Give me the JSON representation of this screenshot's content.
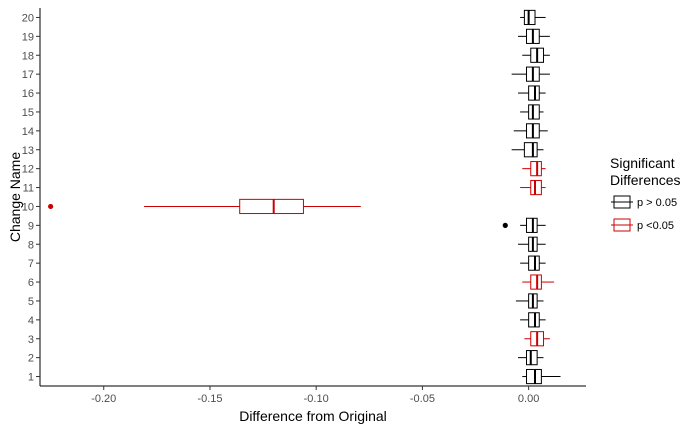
{
  "chart_data": {
    "type": "boxplot",
    "orientation": "horizontal",
    "xlabel": "Difference from Original",
    "ylabel": "Change Name",
    "xlim": [
      -0.23,
      0.027
    ],
    "xticks": [
      -0.2,
      -0.15,
      -0.1,
      -0.05,
      0.0
    ],
    "xtick_labels": [
      "-0.20",
      "-0.15",
      "-0.10",
      "-0.05",
      "0.00"
    ],
    "grid": false,
    "legend": {
      "title_lines": [
        "Significant",
        "Differences"
      ],
      "placement": "right",
      "entries": [
        {
          "label": "p > 0.05",
          "color": "#000000"
        },
        {
          "label": "p <0.05",
          "color": "#cc0000"
        }
      ]
    },
    "categories": [
      "1",
      "2",
      "3",
      "4",
      "5",
      "6",
      "7",
      "8",
      "9",
      "10",
      "11",
      "12",
      "13",
      "14",
      "15",
      "16",
      "17",
      "18",
      "19",
      "20"
    ],
    "boxes": [
      {
        "category": "1",
        "significant": false,
        "whisker_low": -0.003,
        "q1": -0.001,
        "median": 0.003,
        "q3": 0.006,
        "whisker_high": 0.015,
        "outliers": []
      },
      {
        "category": "2",
        "significant": false,
        "whisker_low": -0.005,
        "q1": -0.001,
        "median": 0.001,
        "q3": 0.004,
        "whisker_high": 0.007,
        "outliers": []
      },
      {
        "category": "3",
        "significant": true,
        "whisker_low": -0.002,
        "q1": 0.001,
        "median": 0.004,
        "q3": 0.007,
        "whisker_high": 0.01,
        "outliers": []
      },
      {
        "category": "4",
        "significant": false,
        "whisker_low": -0.004,
        "q1": 0.0,
        "median": 0.003,
        "q3": 0.005,
        "whisker_high": 0.008,
        "outliers": []
      },
      {
        "category": "5",
        "significant": false,
        "whisker_low": -0.006,
        "q1": 0.0,
        "median": 0.002,
        "q3": 0.004,
        "whisker_high": 0.007,
        "outliers": []
      },
      {
        "category": "6",
        "significant": true,
        "whisker_low": -0.003,
        "q1": 0.001,
        "median": 0.004,
        "q3": 0.006,
        "whisker_high": 0.012,
        "outliers": []
      },
      {
        "category": "7",
        "significant": false,
        "whisker_low": -0.004,
        "q1": 0.0,
        "median": 0.003,
        "q3": 0.005,
        "whisker_high": 0.008,
        "outliers": []
      },
      {
        "category": "8",
        "significant": false,
        "whisker_low": -0.005,
        "q1": 0.0,
        "median": 0.002,
        "q3": 0.004,
        "whisker_high": 0.008,
        "outliers": []
      },
      {
        "category": "9",
        "significant": false,
        "whisker_low": -0.004,
        "q1": -0.001,
        "median": 0.002,
        "q3": 0.004,
        "whisker_high": 0.008,
        "outliers": [
          -0.011
        ]
      },
      {
        "category": "10",
        "significant": true,
        "whisker_low": -0.181,
        "q1": -0.136,
        "median": -0.12,
        "q3": -0.106,
        "whisker_high": -0.079,
        "outliers": [
          -0.225
        ]
      },
      {
        "category": "11",
        "significant": true,
        "whisker_low": -0.004,
        "q1": 0.001,
        "median": 0.003,
        "q3": 0.006,
        "whisker_high": 0.008,
        "outliers": []
      },
      {
        "category": "12",
        "significant": true,
        "whisker_low": -0.003,
        "q1": 0.001,
        "median": 0.004,
        "q3": 0.006,
        "whisker_high": 0.008,
        "outliers": []
      },
      {
        "category": "13",
        "significant": false,
        "whisker_low": -0.008,
        "q1": -0.002,
        "median": 0.002,
        "q3": 0.004,
        "whisker_high": 0.007,
        "outliers": []
      },
      {
        "category": "14",
        "significant": false,
        "whisker_low": -0.007,
        "q1": -0.001,
        "median": 0.002,
        "q3": 0.005,
        "whisker_high": 0.009,
        "outliers": []
      },
      {
        "category": "15",
        "significant": false,
        "whisker_low": -0.004,
        "q1": 0.0,
        "median": 0.002,
        "q3": 0.005,
        "whisker_high": 0.007,
        "outliers": []
      },
      {
        "category": "16",
        "significant": false,
        "whisker_low": -0.005,
        "q1": 0.0,
        "median": 0.003,
        "q3": 0.005,
        "whisker_high": 0.008,
        "outliers": []
      },
      {
        "category": "17",
        "significant": false,
        "whisker_low": -0.008,
        "q1": -0.001,
        "median": 0.002,
        "q3": 0.005,
        "whisker_high": 0.01,
        "outliers": []
      },
      {
        "category": "18",
        "significant": false,
        "whisker_low": -0.003,
        "q1": 0.001,
        "median": 0.004,
        "q3": 0.007,
        "whisker_high": 0.01,
        "outliers": []
      },
      {
        "category": "19",
        "significant": false,
        "whisker_low": -0.005,
        "q1": -0.001,
        "median": 0.002,
        "q3": 0.005,
        "whisker_high": 0.01,
        "outliers": []
      },
      {
        "category": "20",
        "significant": false,
        "whisker_low": -0.004,
        "q1": -0.002,
        "median": 0.0,
        "q3": 0.003,
        "whisker_high": 0.008,
        "outliers": []
      }
    ]
  }
}
